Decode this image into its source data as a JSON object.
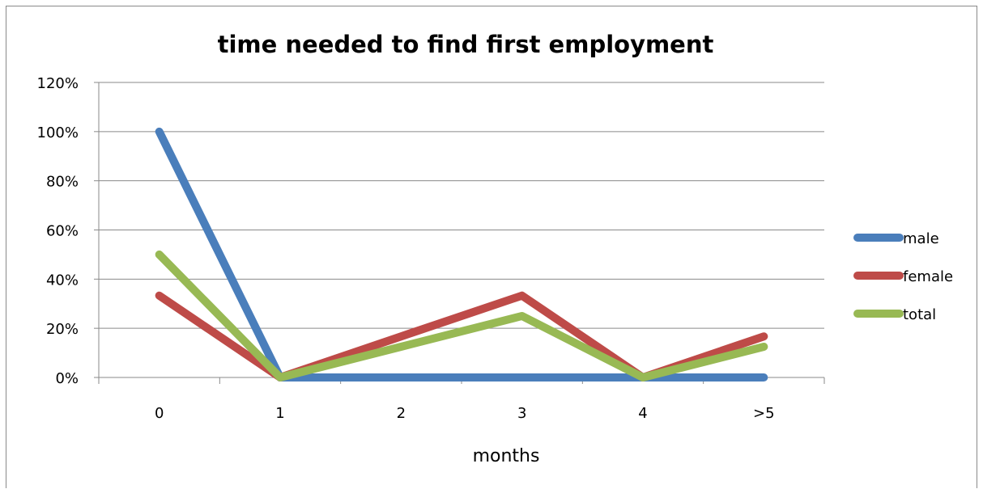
{
  "chart_data": {
    "type": "line",
    "title": "time needed to find first employment",
    "xlabel": "months",
    "ylabel": "",
    "categories": [
      "0",
      "1",
      "2",
      "3",
      "4",
      ">5"
    ],
    "ylim": [
      0,
      1.2
    ],
    "yticks": [
      "0%",
      "20%",
      "40%",
      "60%",
      "80%",
      "100%",
      "120%"
    ],
    "ytick_values": [
      0,
      0.2,
      0.4,
      0.6,
      0.8,
      1.0,
      1.2
    ],
    "grid": true,
    "legend_position": "right",
    "series": [
      {
        "name": "male",
        "color": "#4a7ebb",
        "values": [
          1.0,
          0,
          0,
          0,
          0,
          0
        ]
      },
      {
        "name": "female",
        "color": "#be4b48",
        "values": [
          0.333,
          0,
          0.167,
          0.333,
          0,
          0.167
        ]
      },
      {
        "name": "total",
        "color": "#98b954",
        "values": [
          0.5,
          0,
          0.125,
          0.25,
          0,
          0.125
        ]
      }
    ]
  }
}
